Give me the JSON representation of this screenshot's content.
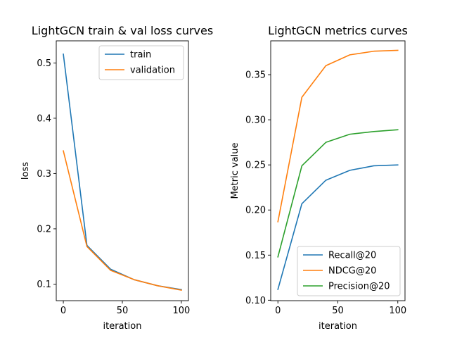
{
  "chart_data": [
    {
      "type": "line",
      "title": "LightGCN train & val loss curves",
      "xlabel": "iteration",
      "ylabel": "loss",
      "xlim": [
        -6,
        106
      ],
      "ylim": [
        0.07,
        0.54
      ],
      "xticks": [
        0,
        50,
        100
      ],
      "yticks": [
        0.1,
        0.2,
        0.3,
        0.4,
        0.5
      ],
      "legend": "top-right",
      "grid": false,
      "x": [
        0,
        20,
        40,
        60,
        80,
        100
      ],
      "series": [
        {
          "name": "train",
          "color": "#1f77b4",
          "values": [
            0.516,
            0.17,
            0.127,
            0.108,
            0.097,
            0.09
          ]
        },
        {
          "name": "validation",
          "color": "#ff7f0e",
          "values": [
            0.341,
            0.168,
            0.125,
            0.108,
            0.097,
            0.089
          ]
        }
      ]
    },
    {
      "type": "line",
      "title": "LightGCN metrics curves",
      "xlabel": "iteration",
      "ylabel": "Metric value",
      "xlim": [
        -6,
        106
      ],
      "ylim": [
        0.0995,
        0.3875
      ],
      "xticks": [
        0,
        50,
        100
      ],
      "yticks": [
        0.1,
        0.15,
        0.2,
        0.25,
        0.3,
        0.35
      ],
      "legend": "lower-right",
      "grid": false,
      "x": [
        0,
        20,
        40,
        60,
        80,
        100
      ],
      "series": [
        {
          "name": "Recall@20",
          "color": "#1f77b4",
          "values": [
            0.112,
            0.207,
            0.233,
            0.244,
            0.249,
            0.25
          ]
        },
        {
          "name": "NDCG@20",
          "color": "#ff7f0e",
          "values": [
            0.187,
            0.325,
            0.36,
            0.372,
            0.376,
            0.377
          ]
        },
        {
          "name": "Precision@20",
          "color": "#2ca02c",
          "values": [
            0.148,
            0.249,
            0.275,
            0.284,
            0.287,
            0.289
          ]
        }
      ]
    }
  ]
}
